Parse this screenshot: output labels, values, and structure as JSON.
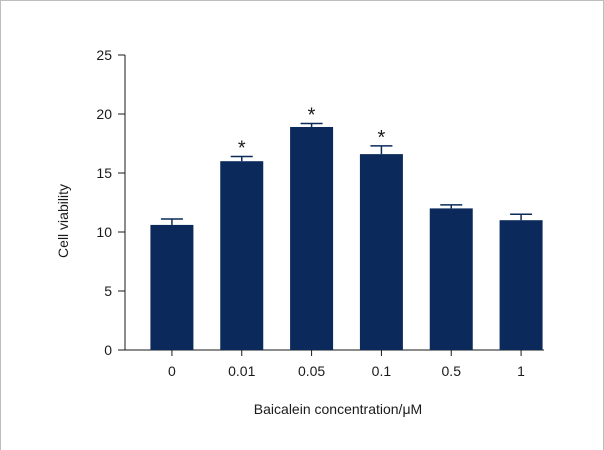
{
  "chart_data": {
    "type": "bar",
    "categories": [
      "0",
      "0.01",
      "0.05",
      "0.1",
      "0.5",
      "1"
    ],
    "values": [
      10.6,
      16.0,
      18.9,
      16.6,
      12.0,
      11.0
    ],
    "errors": [
      0.5,
      0.4,
      0.3,
      0.7,
      0.3,
      0.5
    ],
    "annotations": [
      "",
      "*",
      "*",
      "*",
      "",
      ""
    ],
    "title": "",
    "xlabel": "Baicalein concentration/μM",
    "ylabel": "Cell viability",
    "ylim": [
      0,
      25
    ],
    "yticks": [
      0,
      5,
      10,
      15,
      20,
      25
    ],
    "grid": false,
    "bar_color": "#0b2a5b"
  }
}
